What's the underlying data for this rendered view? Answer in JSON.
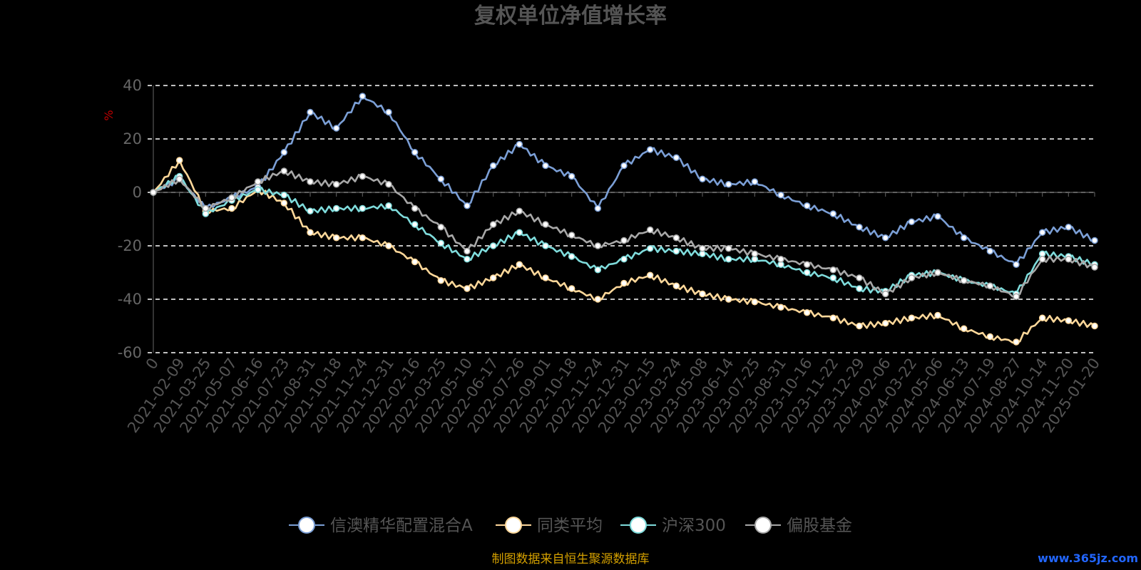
{
  "chart_data": {
    "type": "line",
    "title": "复权单位净值增长率",
    "ylabel": "%",
    "ylim": [
      -60,
      40
    ],
    "yticks": [
      40,
      20,
      0,
      -20,
      -40,
      -60
    ],
    "grid": true,
    "legend_position": "bottom-center",
    "x": [
      "0",
      "2021-02-09",
      "2021-03-25",
      "2021-05-07",
      "2021-06-16",
      "2021-07-23",
      "2021-08-31",
      "2021-10-18",
      "2021-11-24",
      "2021-12-31",
      "2022-02-16",
      "2022-03-25",
      "2022-05-10",
      "2022-06-17",
      "2022-07-26",
      "2022-09-01",
      "2022-10-18",
      "2022-11-24",
      "2022-12-31",
      "2023-02-15",
      "2023-03-24",
      "2023-05-08",
      "2023-06-14",
      "2023-07-25",
      "2023-08-31",
      "2023-10-16",
      "2023-11-22",
      "2023-12-29",
      "2024-02-06",
      "2024-03-22",
      "2024-05-06",
      "2024-06-13",
      "2024-07-19",
      "2024-08-27",
      "2024-10-14",
      "2024-11-20",
      "2025-01-20"
    ],
    "series": [
      {
        "name": "信澳精华配置混合A",
        "color": "#7b9fd6",
        "values": [
          0,
          5,
          -6,
          -2,
          2,
          15,
          30,
          24,
          36,
          30,
          15,
          5,
          -5,
          10,
          18,
          10,
          6,
          -6,
          10,
          16,
          13,
          5,
          3,
          4,
          -1,
          -5,
          -8,
          -13,
          -17,
          -11,
          -9,
          -17,
          -22,
          -27,
          -15,
          -13,
          -18
        ]
      },
      {
        "name": "同类平均",
        "color": "#ffd89a",
        "values": [
          0,
          12,
          -7,
          -6,
          1,
          -4,
          -15,
          -17,
          -17,
          -20,
          -26,
          -33,
          -36,
          -32,
          -27,
          -32,
          -36,
          -40,
          -34,
          -31,
          -35,
          -38,
          -40,
          -41,
          -43,
          -45,
          -47,
          -50,
          -49,
          -47,
          -46,
          -51,
          -54,
          -56,
          -47,
          -48,
          -50
        ]
      },
      {
        "name": "沪深300",
        "color": "#7fdcdc",
        "values": [
          0,
          6,
          -8,
          -3,
          1,
          -1,
          -7,
          -6,
          -6,
          -5,
          -12,
          -19,
          -25,
          -20,
          -15,
          -20,
          -24,
          -29,
          -25,
          -21,
          -22,
          -23,
          -25,
          -25,
          -27,
          -30,
          -32,
          -36,
          -37,
          -31,
          -30,
          -33,
          -35,
          -38,
          -23,
          -24,
          -27
        ]
      },
      {
        "name": "偏股基金",
        "color": "#a8a8a8",
        "values": [
          0,
          5,
          -6,
          -2,
          4,
          8,
          4,
          3,
          6,
          3,
          -6,
          -13,
          -22,
          -12,
          -7,
          -12,
          -16,
          -20,
          -18,
          -14,
          -17,
          -21,
          -21,
          -23,
          -25,
          -27,
          -29,
          -32,
          -38,
          -32,
          -30,
          -33,
          -35,
          -39,
          -25,
          -25,
          -28
        ]
      }
    ]
  },
  "source_note": "制图数据来自恒生聚源数据库",
  "watermark": "www.365jz.com"
}
